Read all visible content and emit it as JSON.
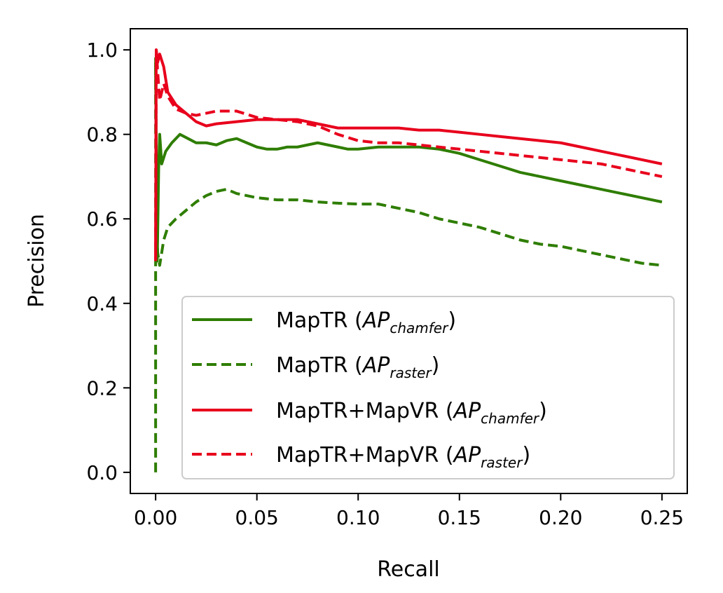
{
  "chart_data": {
    "type": "line",
    "xlabel": "Recall",
    "ylabel": "Precision",
    "xlim": [
      -0.0125,
      0.2625
    ],
    "ylim": [
      -0.05,
      1.05
    ],
    "xticks": [
      "0.00",
      "0.05",
      "0.10",
      "0.15",
      "0.20",
      "0.25"
    ],
    "yticks": [
      "0.0",
      "0.2",
      "0.4",
      "0.6",
      "0.8",
      "1.0"
    ],
    "grid": false,
    "legend_position": "lower-right",
    "series": [
      {
        "name": "MapTR (AP_chamfer)",
        "legend_main": "MapTR (",
        "legend_it": "AP",
        "legend_sub": "chamfer",
        "legend_end": ")",
        "color": "#2e7d00",
        "style": "solid",
        "points": [
          [
            0.0,
            0.97
          ],
          [
            0.0005,
            0.6
          ],
          [
            0.0008,
            0.5
          ],
          [
            0.0015,
            0.72
          ],
          [
            0.002,
            0.8
          ],
          [
            0.003,
            0.73
          ],
          [
            0.005,
            0.76
          ],
          [
            0.008,
            0.78
          ],
          [
            0.012,
            0.8
          ],
          [
            0.016,
            0.79
          ],
          [
            0.02,
            0.78
          ],
          [
            0.025,
            0.78
          ],
          [
            0.03,
            0.775
          ],
          [
            0.035,
            0.785
          ],
          [
            0.04,
            0.79
          ],
          [
            0.045,
            0.78
          ],
          [
            0.05,
            0.77
          ],
          [
            0.055,
            0.765
          ],
          [
            0.06,
            0.765
          ],
          [
            0.065,
            0.77
          ],
          [
            0.07,
            0.77
          ],
          [
            0.075,
            0.775
          ],
          [
            0.08,
            0.78
          ],
          [
            0.085,
            0.775
          ],
          [
            0.09,
            0.77
          ],
          [
            0.095,
            0.765
          ],
          [
            0.1,
            0.765
          ],
          [
            0.11,
            0.77
          ],
          [
            0.12,
            0.77
          ],
          [
            0.13,
            0.77
          ],
          [
            0.14,
            0.765
          ],
          [
            0.15,
            0.755
          ],
          [
            0.16,
            0.74
          ],
          [
            0.17,
            0.725
          ],
          [
            0.18,
            0.71
          ],
          [
            0.19,
            0.7
          ],
          [
            0.2,
            0.69
          ],
          [
            0.21,
            0.68
          ],
          [
            0.22,
            0.67
          ],
          [
            0.23,
            0.66
          ],
          [
            0.24,
            0.65
          ],
          [
            0.25,
            0.64
          ]
        ]
      },
      {
        "name": "MapTR (AP_raster)",
        "legend_main": "MapTR (",
        "legend_it": "AP",
        "legend_sub": "raster",
        "legend_end": ")",
        "color": "#2e7d00",
        "style": "dashed",
        "points": [
          [
            0.0,
            0.0
          ],
          [
            0.0,
            0.98
          ],
          [
            0.0005,
            0.6
          ],
          [
            0.001,
            0.52
          ],
          [
            0.002,
            0.49
          ],
          [
            0.004,
            0.55
          ],
          [
            0.006,
            0.58
          ],
          [
            0.01,
            0.6
          ],
          [
            0.015,
            0.62
          ],
          [
            0.02,
            0.64
          ],
          [
            0.025,
            0.655
          ],
          [
            0.03,
            0.665
          ],
          [
            0.035,
            0.67
          ],
          [
            0.04,
            0.66
          ],
          [
            0.05,
            0.65
          ],
          [
            0.06,
            0.645
          ],
          [
            0.07,
            0.645
          ],
          [
            0.08,
            0.64
          ],
          [
            0.09,
            0.637
          ],
          [
            0.1,
            0.635
          ],
          [
            0.11,
            0.635
          ],
          [
            0.12,
            0.625
          ],
          [
            0.13,
            0.615
          ],
          [
            0.14,
            0.6
          ],
          [
            0.15,
            0.59
          ],
          [
            0.16,
            0.58
          ],
          [
            0.17,
            0.565
          ],
          [
            0.18,
            0.55
          ],
          [
            0.19,
            0.54
          ],
          [
            0.2,
            0.535
          ],
          [
            0.21,
            0.525
          ],
          [
            0.22,
            0.515
          ],
          [
            0.23,
            0.505
          ],
          [
            0.24,
            0.495
          ],
          [
            0.25,
            0.49
          ]
        ]
      },
      {
        "name": "MapTR+MapVR (AP_chamfer)",
        "legend_main": "MapTR+MapVR (",
        "legend_it": "AP",
        "legend_sub": "chamfer",
        "legend_end": ")",
        "color": "#e8001c",
        "style": "solid",
        "points": [
          [
            0.0,
            0.5
          ],
          [
            0.0003,
            1.0
          ],
          [
            0.001,
            0.97
          ],
          [
            0.002,
            0.99
          ],
          [
            0.004,
            0.96
          ],
          [
            0.006,
            0.9
          ],
          [
            0.01,
            0.87
          ],
          [
            0.015,
            0.85
          ],
          [
            0.02,
            0.83
          ],
          [
            0.025,
            0.82
          ],
          [
            0.03,
            0.825
          ],
          [
            0.04,
            0.83
          ],
          [
            0.05,
            0.835
          ],
          [
            0.06,
            0.835
          ],
          [
            0.07,
            0.835
          ],
          [
            0.08,
            0.825
          ],
          [
            0.09,
            0.815
          ],
          [
            0.1,
            0.815
          ],
          [
            0.11,
            0.815
          ],
          [
            0.12,
            0.815
          ],
          [
            0.13,
            0.81
          ],
          [
            0.14,
            0.81
          ],
          [
            0.15,
            0.805
          ],
          [
            0.16,
            0.8
          ],
          [
            0.17,
            0.795
          ],
          [
            0.18,
            0.79
          ],
          [
            0.19,
            0.785
          ],
          [
            0.2,
            0.78
          ],
          [
            0.21,
            0.77
          ],
          [
            0.22,
            0.76
          ],
          [
            0.23,
            0.75
          ],
          [
            0.24,
            0.74
          ],
          [
            0.25,
            0.73
          ]
        ]
      },
      {
        "name": "MapTR+MapVR (AP_raster)",
        "legend_main": "MapTR+MapVR (",
        "legend_it": "AP",
        "legend_sub": "raster",
        "legend_end": ")",
        "color": "#e8001c",
        "style": "dashed",
        "points": [
          [
            0.0,
            0.5
          ],
          [
            0.0003,
            1.0
          ],
          [
            0.001,
            0.95
          ],
          [
            0.002,
            0.88
          ],
          [
            0.004,
            0.92
          ],
          [
            0.006,
            0.89
          ],
          [
            0.01,
            0.86
          ],
          [
            0.015,
            0.85
          ],
          [
            0.02,
            0.845
          ],
          [
            0.025,
            0.85
          ],
          [
            0.03,
            0.855
          ],
          [
            0.04,
            0.855
          ],
          [
            0.05,
            0.84
          ],
          [
            0.06,
            0.835
          ],
          [
            0.07,
            0.83
          ],
          [
            0.08,
            0.82
          ],
          [
            0.09,
            0.8
          ],
          [
            0.1,
            0.785
          ],
          [
            0.11,
            0.78
          ],
          [
            0.12,
            0.78
          ],
          [
            0.13,
            0.775
          ],
          [
            0.14,
            0.77
          ],
          [
            0.15,
            0.765
          ],
          [
            0.16,
            0.76
          ],
          [
            0.17,
            0.755
          ],
          [
            0.18,
            0.75
          ],
          [
            0.19,
            0.745
          ],
          [
            0.2,
            0.74
          ],
          [
            0.21,
            0.735
          ],
          [
            0.22,
            0.73
          ],
          [
            0.23,
            0.72
          ],
          [
            0.24,
            0.71
          ],
          [
            0.25,
            0.7
          ]
        ]
      }
    ]
  }
}
